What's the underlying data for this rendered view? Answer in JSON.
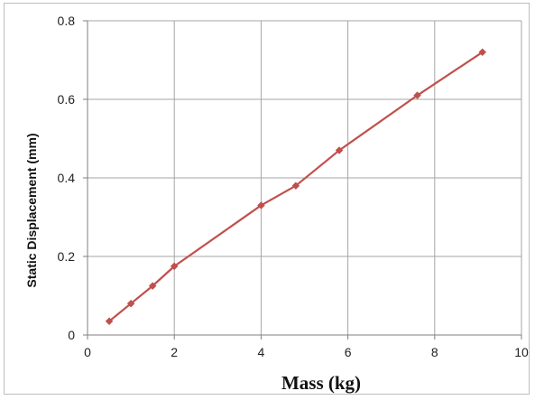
{
  "chart_data": {
    "type": "line",
    "title": "",
    "xlabel": "Mass (kg)",
    "ylabel": "Static Displacement (mm)",
    "xlim": [
      0,
      10
    ],
    "ylim": [
      0,
      0.8
    ],
    "grid": true,
    "x_ticks": [
      "0",
      "2",
      "4",
      "6",
      "8",
      "10"
    ],
    "y_ticks": [
      "0",
      "0.2",
      "0.4",
      "0.6",
      "0.8"
    ],
    "series": [
      {
        "color": "#c0504d",
        "marker": "diamond",
        "x": [
          0.5,
          1.0,
          1.5,
          2.0,
          4.0,
          4.8,
          5.8,
          7.6,
          9.1
        ],
        "y": [
          0.035,
          0.08,
          0.125,
          0.175,
          0.33,
          0.38,
          0.47,
          0.61,
          0.72
        ]
      }
    ]
  }
}
